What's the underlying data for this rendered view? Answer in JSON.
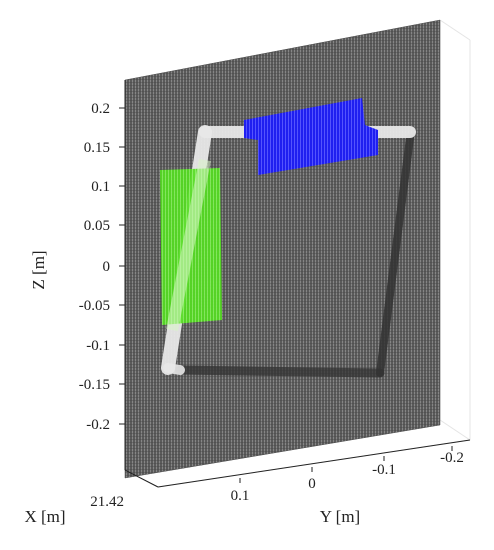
{
  "chart_data": {
    "type": "scatter",
    "projection": "3d",
    "xlabel": "X [m]",
    "ylabel": "Y [m]",
    "zlabel": "Z [m]",
    "x_ticks": [
      "21.42"
    ],
    "y_ticks": [
      "0.1",
      "0",
      "-0.1",
      "-0.2"
    ],
    "z_ticks": [
      "0.2",
      "0.15",
      "0.1",
      "0.05",
      "0",
      "-0.05",
      "-0.1",
      "-0.15",
      "-0.2"
    ],
    "zlim": [
      -0.25,
      0.25
    ],
    "grid": true,
    "series": [
      {
        "color": "#5a5a5a"
      },
      {
        "color": "#e6e6e6"
      },
      {
        "color": "#2222ff"
      },
      {
        "color": "#55dd22"
      }
    ]
  }
}
